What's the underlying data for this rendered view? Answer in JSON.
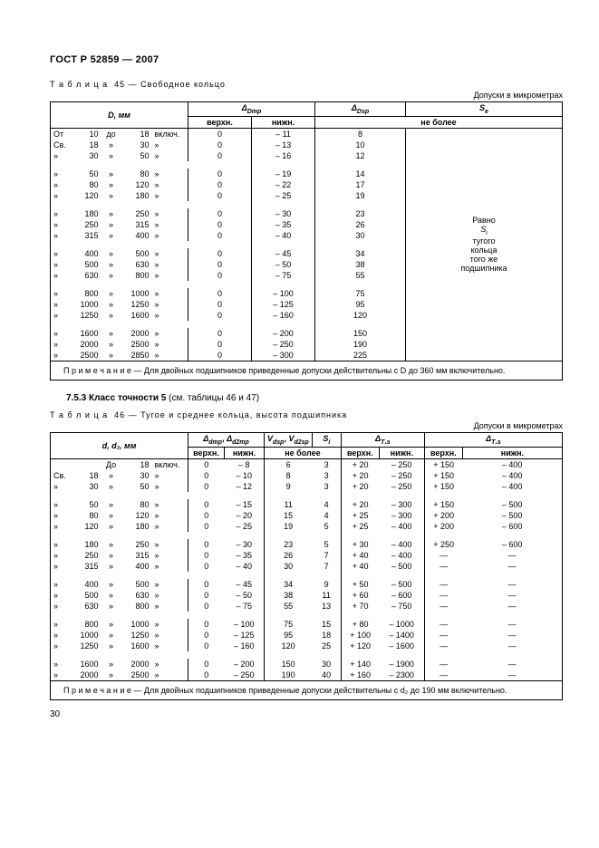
{
  "documentTitle": "ГОСТ Р 52859 — 2007",
  "unitsLabel": "Допуски в микрометрах",
  "pageNumber": "30",
  "table45": {
    "labelPrefix": "Т а б л и ц а  45 —",
    "labelText": "Свободное кольцо",
    "headers": {
      "D": "D, мм",
      "dDmp": "Δ",
      "dDmpSub": "Dmp",
      "dDsp": "Δ",
      "dDspSub": "Dsp",
      "Se": "S",
      "SeSub": "e",
      "upper": "верхн.",
      "lower": "нижн.",
      "notMore": "не более"
    },
    "rangeTokens": {
      "from": "От",
      "gt": "Св.",
      "same": "»",
      "to": "до",
      "incl": "включ."
    },
    "rightNoteLines": [
      "Равно",
      "S",
      "тугого",
      "кольца",
      "того же",
      "подшипника"
    ],
    "rightNoteSub": "i",
    "rows": [
      [
        [
          "От",
          "10",
          "до",
          "18",
          "включ."
        ],
        "0",
        "– 11",
        "8"
      ],
      [
        [
          "Св.",
          "18",
          "»",
          "30",
          "»"
        ],
        "0",
        "– 13",
        "10"
      ],
      [
        [
          "»",
          "30",
          "»",
          "50",
          "»"
        ],
        "0",
        "– 16",
        "12"
      ],
      null,
      [
        [
          "»",
          "50",
          "»",
          "80",
          "»"
        ],
        "0",
        "– 19",
        "14"
      ],
      [
        [
          "»",
          "80",
          "»",
          "120",
          "»"
        ],
        "0",
        "– 22",
        "17"
      ],
      [
        [
          "»",
          "120",
          "»",
          "180",
          "»"
        ],
        "0",
        "– 25",
        "19"
      ],
      null,
      [
        [
          "»",
          "180",
          "»",
          "250",
          "»"
        ],
        "0",
        "– 30",
        "23"
      ],
      [
        [
          "»",
          "250",
          "»",
          "315",
          "»"
        ],
        "0",
        "– 35",
        "26"
      ],
      [
        [
          "»",
          "315",
          "»",
          "400",
          "»"
        ],
        "0",
        "– 40",
        "30"
      ],
      null,
      [
        [
          "»",
          "400",
          "»",
          "500",
          "»"
        ],
        "0",
        "– 45",
        "34"
      ],
      [
        [
          "»",
          "500",
          "»",
          "630",
          "»"
        ],
        "0",
        "– 50",
        "38"
      ],
      [
        [
          "»",
          "630",
          "»",
          "800",
          "»"
        ],
        "0",
        "– 75",
        "55"
      ],
      null,
      [
        [
          "»",
          "800",
          "»",
          "1000",
          "»"
        ],
        "0",
        "– 100",
        "75"
      ],
      [
        [
          "»",
          "1000",
          "»",
          "1250",
          "»"
        ],
        "0",
        "– 125",
        "95"
      ],
      [
        [
          "»",
          "1250",
          "»",
          "1600",
          "»"
        ],
        "0",
        "– 160",
        "120"
      ],
      null,
      [
        [
          "»",
          "1600",
          "»",
          "2000",
          "»"
        ],
        "0",
        "– 200",
        "150"
      ],
      [
        [
          "»",
          "2000",
          "»",
          "2500",
          "»"
        ],
        "0",
        "– 250",
        "190"
      ],
      [
        [
          "»",
          "2500",
          "»",
          "2850",
          "»"
        ],
        "0",
        "– 300",
        "225"
      ]
    ],
    "note": "П р и м е ч а н и е — Для двойных подшипников приведенные допуски действительны с D до 360 мм включительно."
  },
  "sectionHead": {
    "num": "7.5.3 Класс точности 5",
    "paren": "(см. таблицы 46 и 47)"
  },
  "table46": {
    "labelPrefix": "Т а б л и ц а  46 —",
    "labelText": "Тугое и среднее кольца, высота подшипника",
    "headers": {
      "d": "d, d₂, мм",
      "dmp": "Δ",
      "dmpSub": "dmp",
      "d2mp": "Δ",
      "d2mpSub": "d2mp",
      "Vdsp": "V",
      "VdspSub": "dsp",
      "Vd2sp": "V",
      "Vd2spSub": "d2sp",
      "Si": "S",
      "SiSub": "i",
      "T1s": "Δ",
      "T1sSub": "T₁s",
      "T1s2": "Δ",
      "T1s2Sub": "T₁s",
      "upper": "верхн.",
      "lower": "нижн.",
      "notMore": "не более"
    },
    "rows": [
      [
        [
          "",
          "",
          "До",
          "18",
          "включ."
        ],
        "0",
        "– 8",
        "6",
        "3",
        "+ 20",
        "– 250",
        "+ 150",
        "– 400"
      ],
      [
        [
          "Св.",
          "18",
          "»",
          "30",
          "»"
        ],
        "0",
        "– 10",
        "8",
        "3",
        "+ 20",
        "– 250",
        "+ 150",
        "– 400"
      ],
      [
        [
          "»",
          "30",
          "»",
          "50",
          "»"
        ],
        "0",
        "– 12",
        "9",
        "3",
        "+ 20",
        "– 250",
        "+ 150",
        "– 400"
      ],
      null,
      [
        [
          "»",
          "50",
          "»",
          "80",
          "»"
        ],
        "0",
        "– 15",
        "11",
        "4",
        "+ 20",
        "– 300",
        "+ 150",
        "– 500"
      ],
      [
        [
          "»",
          "80",
          "»",
          "120",
          "»"
        ],
        "0",
        "– 20",
        "15",
        "4",
        "+ 25",
        "– 300",
        "+ 200",
        "– 500"
      ],
      [
        [
          "»",
          "120",
          "»",
          "180",
          "»"
        ],
        "0",
        "– 25",
        "19",
        "5",
        "+ 25",
        "– 400",
        "+ 200",
        "– 600"
      ],
      null,
      [
        [
          "»",
          "180",
          "»",
          "250",
          "»"
        ],
        "0",
        "– 30",
        "23",
        "5",
        "+ 30",
        "– 400",
        "+ 250",
        "– 600"
      ],
      [
        [
          "»",
          "250",
          "»",
          "315",
          "»"
        ],
        "0",
        "– 35",
        "26",
        "7",
        "+ 40",
        "– 400",
        "—",
        "—"
      ],
      [
        [
          "»",
          "315",
          "»",
          "400",
          "»"
        ],
        "0",
        "– 40",
        "30",
        "7",
        "+ 40",
        "– 500",
        "—",
        "—"
      ],
      null,
      [
        [
          "»",
          "400",
          "»",
          "500",
          "»"
        ],
        "0",
        "– 45",
        "34",
        "9",
        "+ 50",
        "– 500",
        "—",
        "—"
      ],
      [
        [
          "»",
          "500",
          "»",
          "630",
          "»"
        ],
        "0",
        "– 50",
        "38",
        "11",
        "+ 60",
        "– 600",
        "—",
        "—"
      ],
      [
        [
          "»",
          "630",
          "»",
          "800",
          "»"
        ],
        "0",
        "– 75",
        "55",
        "13",
        "+ 70",
        "– 750",
        "—",
        "—"
      ],
      null,
      [
        [
          "»",
          "800",
          "»",
          "1000",
          "»"
        ],
        "0",
        "– 100",
        "75",
        "15",
        "+ 80",
        "– 1000",
        "—",
        "—"
      ],
      [
        [
          "»",
          "1000",
          "»",
          "1250",
          "»"
        ],
        "0",
        "– 125",
        "95",
        "18",
        "+ 100",
        "– 1400",
        "—",
        "—"
      ],
      [
        [
          "»",
          "1250",
          "»",
          "1600",
          "»"
        ],
        "0",
        "– 160",
        "120",
        "25",
        "+ 120",
        "– 1600",
        "—",
        "—"
      ],
      null,
      [
        [
          "»",
          "1600",
          "»",
          "2000",
          "»"
        ],
        "0",
        "– 200",
        "150",
        "30",
        "+ 140",
        "– 1900",
        "—",
        "—"
      ],
      [
        [
          "»",
          "2000",
          "»",
          "2500",
          "»"
        ],
        "0",
        "– 250",
        "190",
        "40",
        "+ 160",
        "– 2300",
        "—",
        "—"
      ]
    ],
    "note": "П р и м е ч а н и е — Для двойных подшипников приведенные допуски действительны с d₂ до 190 мм включительно."
  }
}
